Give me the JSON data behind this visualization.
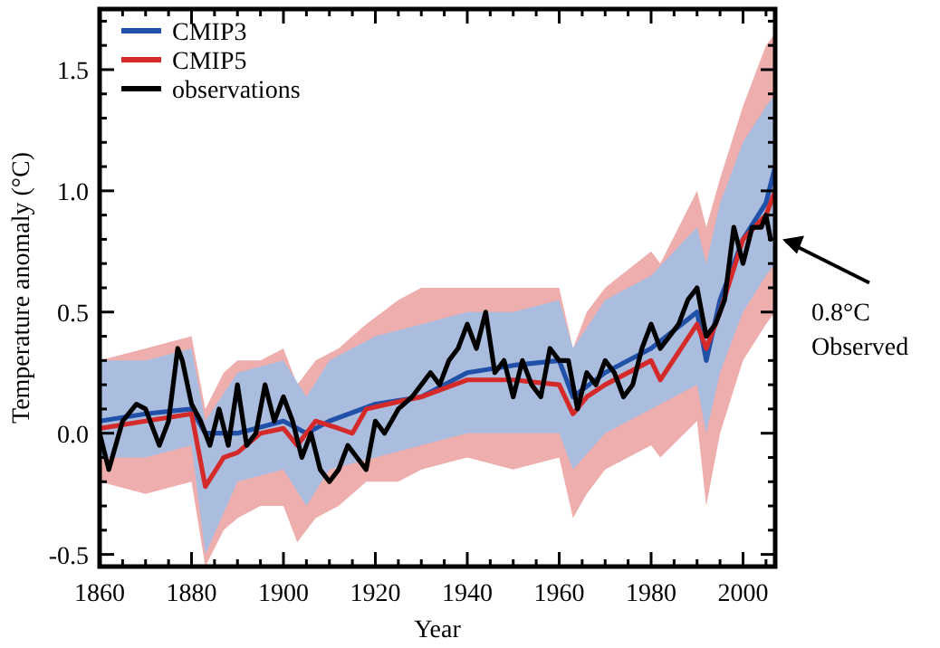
{
  "chart_data": {
    "type": "line",
    "xlabel": "Year",
    "ylabel": "Temperature anomaly (°C)",
    "xlim": [
      1860,
      2007
    ],
    "ylim": [
      -0.55,
      1.75
    ],
    "xticks": [
      1860,
      {
        "value": 1865,
        "label": null
      },
      {
        "value": 1870,
        "label": null
      },
      {
        "value": 1875,
        "label": null
      },
      1880,
      {
        "value": 1885,
        "label": null
      },
      {
        "value": 1890,
        "label": null
      },
      {
        "value": 1895,
        "label": null
      },
      1900,
      {
        "value": 1905,
        "label": null
      },
      {
        "value": 1910,
        "label": null
      },
      {
        "value": 1915,
        "label": null
      },
      1920,
      {
        "value": 1925,
        "label": null
      },
      {
        "value": 1930,
        "label": null
      },
      {
        "value": 1935,
        "label": null
      },
      1940,
      {
        "value": 1945,
        "label": null
      },
      {
        "value": 1950,
        "label": null
      },
      {
        "value": 1955,
        "label": null
      },
      1960,
      {
        "value": 1965,
        "label": null
      },
      {
        "value": 1970,
        "label": null
      },
      {
        "value": 1975,
        "label": null
      },
      1980,
      {
        "value": 1985,
        "label": null
      },
      {
        "value": 1990,
        "label": null
      },
      {
        "value": 1995,
        "label": null
      },
      2000,
      {
        "value": 2005,
        "label": null
      }
    ],
    "yticks": [
      {
        "value": -0.5,
        "label": "-0.5"
      },
      {
        "value": -0.4,
        "label": null
      },
      {
        "value": -0.3,
        "label": null
      },
      {
        "value": -0.2,
        "label": null
      },
      {
        "value": -0.1,
        "label": null
      },
      {
        "value": 0,
        "label": "0.0"
      },
      {
        "value": 0.1,
        "label": null
      },
      {
        "value": 0.2,
        "label": null
      },
      {
        "value": 0.3,
        "label": null
      },
      {
        "value": 0.4,
        "label": null
      },
      {
        "value": 0.5,
        "label": "0.5"
      },
      {
        "value": 0.6,
        "label": null
      },
      {
        "value": 0.7,
        "label": null
      },
      {
        "value": 0.8,
        "label": null
      },
      {
        "value": 0.9,
        "label": null
      },
      {
        "value": 1.0,
        "label": "1.0"
      },
      {
        "value": 1.1,
        "label": null
      },
      {
        "value": 1.2,
        "label": null
      },
      {
        "value": 1.3,
        "label": null
      },
      {
        "value": 1.4,
        "label": null
      },
      {
        "value": 1.5,
        "label": "1.5"
      },
      {
        "value": 1.6,
        "label": null
      },
      {
        "value": 1.7,
        "label": null
      }
    ],
    "legend": "top left",
    "annotations": [
      {
        "text": "0.8°C Observed",
        "x": 2007,
        "y": 0.8
      }
    ],
    "series": [
      {
        "name": "CMIP3",
        "color": "#2150a8",
        "x": [
          1860,
          1870,
          1880,
          1883,
          1890,
          1900,
          1905,
          1910,
          1920,
          1930,
          1940,
          1950,
          1960,
          1963,
          1970,
          1980,
          1990,
          1992,
          1995,
          2000,
          2005,
          2007
        ],
        "values": [
          0.05,
          0.08,
          0.1,
          0.0,
          0.0,
          0.05,
          0.0,
          0.05,
          0.12,
          0.15,
          0.25,
          0.28,
          0.3,
          0.15,
          0.25,
          0.35,
          0.5,
          0.3,
          0.55,
          0.8,
          0.95,
          1.1
        ],
        "lower": [
          -0.1,
          -0.1,
          -0.05,
          -0.5,
          -0.2,
          -0.15,
          -0.3,
          -0.15,
          -0.1,
          -0.05,
          0.0,
          0.0,
          0.0,
          -0.15,
          0.0,
          0.1,
          0.2,
          0.0,
          0.25,
          0.5,
          0.65,
          0.7
        ],
        "upper": [
          0.3,
          0.3,
          0.35,
          0.05,
          0.25,
          0.3,
          0.15,
          0.3,
          0.4,
          0.45,
          0.5,
          0.5,
          0.55,
          0.35,
          0.55,
          0.65,
          0.85,
          0.7,
          0.95,
          1.2,
          1.35,
          1.4
        ]
      },
      {
        "name": "CMIP5",
        "color": "#d42a2a",
        "x": [
          1860,
          1870,
          1880,
          1883,
          1887,
          1890,
          1895,
          1900,
          1903,
          1907,
          1912,
          1915,
          1918,
          1925,
          1930,
          1940,
          1950,
          1960,
          1963,
          1966,
          1970,
          1980,
          1982,
          1990,
          1992,
          1995,
          2000,
          2005,
          2007
        ],
        "values": [
          0.02,
          0.05,
          0.08,
          -0.22,
          -0.1,
          -0.08,
          0.0,
          0.02,
          -0.05,
          0.05,
          0.02,
          0.0,
          0.1,
          0.13,
          0.15,
          0.22,
          0.22,
          0.2,
          0.08,
          0.15,
          0.2,
          0.3,
          0.22,
          0.45,
          0.35,
          0.5,
          0.8,
          0.9,
          1.0
        ],
        "lower": [
          -0.2,
          -0.25,
          -0.2,
          -0.55,
          -0.4,
          -0.35,
          -0.3,
          -0.3,
          -0.45,
          -0.35,
          -0.3,
          -0.25,
          -0.2,
          -0.2,
          -0.15,
          -0.1,
          -0.15,
          -0.1,
          -0.35,
          -0.25,
          -0.15,
          -0.05,
          -0.1,
          0.05,
          -0.3,
          0.0,
          0.3,
          0.45,
          0.5
        ],
        "upper": [
          0.3,
          0.35,
          0.4,
          0.1,
          0.25,
          0.3,
          0.3,
          0.35,
          0.2,
          0.3,
          0.35,
          0.4,
          0.45,
          0.55,
          0.6,
          0.6,
          0.6,
          0.6,
          0.35,
          0.5,
          0.6,
          0.75,
          0.7,
          1.0,
          0.85,
          1.05,
          1.35,
          1.6,
          1.65
        ]
      },
      {
        "name": "observations",
        "color": "#000000",
        "x": [
          1860,
          1862,
          1865,
          1868,
          1870,
          1873,
          1875,
          1877,
          1878,
          1880,
          1882,
          1884,
          1886,
          1888,
          1890,
          1892,
          1894,
          1896,
          1898,
          1900,
          1902,
          1904,
          1906,
          1908,
          1910,
          1912,
          1914,
          1916,
          1918,
          1920,
          1922,
          1925,
          1928,
          1930,
          1932,
          1934,
          1936,
          1938,
          1940,
          1942,
          1944,
          1946,
          1948,
          1950,
          1952,
          1954,
          1956,
          1958,
          1960,
          1962,
          1964,
          1966,
          1968,
          1970,
          1972,
          1974,
          1976,
          1978,
          1980,
          1982,
          1984,
          1986,
          1988,
          1990,
          1992,
          1994,
          1996,
          1998,
          2000,
          2002,
          2004,
          2005,
          2006
        ],
        "values": [
          0.0,
          -0.15,
          0.05,
          0.12,
          0.1,
          -0.05,
          0.05,
          0.35,
          0.3,
          0.12,
          0.05,
          -0.05,
          0.1,
          -0.05,
          0.2,
          -0.05,
          0.0,
          0.2,
          0.05,
          0.15,
          0.05,
          -0.1,
          0.0,
          -0.15,
          -0.2,
          -0.15,
          -0.05,
          -0.1,
          -0.15,
          0.05,
          0.0,
          0.1,
          0.15,
          0.2,
          0.25,
          0.2,
          0.3,
          0.35,
          0.45,
          0.35,
          0.5,
          0.25,
          0.3,
          0.15,
          0.3,
          0.2,
          0.15,
          0.35,
          0.3,
          0.3,
          0.1,
          0.25,
          0.2,
          0.3,
          0.25,
          0.15,
          0.2,
          0.35,
          0.45,
          0.35,
          0.4,
          0.45,
          0.55,
          0.6,
          0.4,
          0.45,
          0.55,
          0.85,
          0.7,
          0.85,
          0.85,
          0.9,
          0.8
        ]
      }
    ]
  }
}
